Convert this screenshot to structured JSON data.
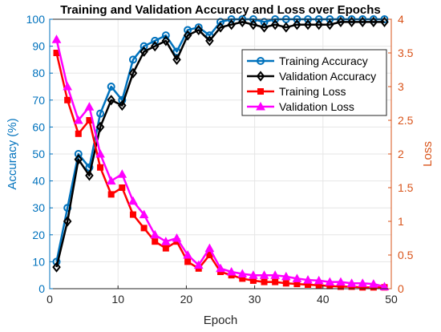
{
  "chart_data": {
    "type": "line",
    "title": "Training and Validation Accuracy and Loss over Epochs",
    "xlabel": "Epoch",
    "ylabel_left": "Accuracy (%)",
    "ylabel_right": "Loss",
    "xlim": [
      0,
      50
    ],
    "ylim_left": [
      0,
      100
    ],
    "ylim_right": [
      0,
      4
    ],
    "xticks": [
      0,
      10,
      20,
      30,
      40,
      50
    ],
    "yticks_left": [
      0,
      10,
      20,
      30,
      40,
      50,
      60,
      70,
      80,
      90,
      100
    ],
    "yticks_right": [
      0,
      0.5,
      1,
      1.5,
      2,
      2.5,
      3,
      3.5,
      4
    ],
    "grid": true,
    "legend_position": "top-right",
    "colors": {
      "left_axis": "#0072BD",
      "right_axis": "#D95319",
      "title": "#000000",
      "grid": "#e6e6e6"
    },
    "x": [
      1,
      2.6,
      4.2,
      5.8,
      7.4,
      9,
      10.6,
      12.2,
      13.8,
      15.4,
      17,
      18.6,
      20.2,
      21.8,
      23.4,
      25,
      26.6,
      28.2,
      29.8,
      31.4,
      33,
      34.6,
      36.2,
      37.8,
      39.4,
      41,
      42.6,
      44.2,
      45.8,
      47.4,
      49
    ],
    "series": [
      {
        "name": "Training Accuracy",
        "axis": "left",
        "color": "#0072BD",
        "marker": "circle",
        "values": [
          10,
          30,
          50,
          45,
          65,
          75,
          70,
          85,
          90,
          92,
          94,
          88,
          96,
          97,
          94,
          99,
          100,
          100,
          100,
          99,
          100,
          100,
          100,
          100,
          100,
          100,
          100,
          100,
          100,
          100,
          100
        ]
      },
      {
        "name": "Validation Accuracy",
        "axis": "left",
        "color": "#000000",
        "marker": "diamond",
        "values": [
          8,
          25,
          48,
          42,
          60,
          70,
          68,
          80,
          88,
          90,
          92,
          85,
          94,
          96,
          92,
          97,
          98,
          99,
          98,
          97,
          98,
          97,
          98,
          98,
          98,
          98,
          99,
          99,
          99,
          99,
          99
        ]
      },
      {
        "name": "Training Loss",
        "axis": "right",
        "color": "#FF0000",
        "marker": "square",
        "values": [
          3.5,
          2.8,
          2.3,
          2.5,
          1.8,
          1.4,
          1.5,
          1.1,
          0.9,
          0.7,
          0.6,
          0.7,
          0.4,
          0.3,
          0.5,
          0.25,
          0.2,
          0.15,
          0.12,
          0.1,
          0.1,
          0.08,
          0.07,
          0.06,
          0.05,
          0.04,
          0.03,
          0.03,
          0.02,
          0.02,
          0.02
        ]
      },
      {
        "name": "Validation Loss",
        "axis": "right",
        "color": "#FF00FF",
        "marker": "triangle",
        "values": [
          3.7,
          3.0,
          2.5,
          2.7,
          2.0,
          1.6,
          1.7,
          1.3,
          1.1,
          0.8,
          0.7,
          0.75,
          0.5,
          0.35,
          0.6,
          0.3,
          0.25,
          0.22,
          0.2,
          0.2,
          0.2,
          0.18,
          0.15,
          0.13,
          0.12,
          0.1,
          0.1,
          0.08,
          0.08,
          0.07,
          0.03
        ]
      }
    ]
  }
}
